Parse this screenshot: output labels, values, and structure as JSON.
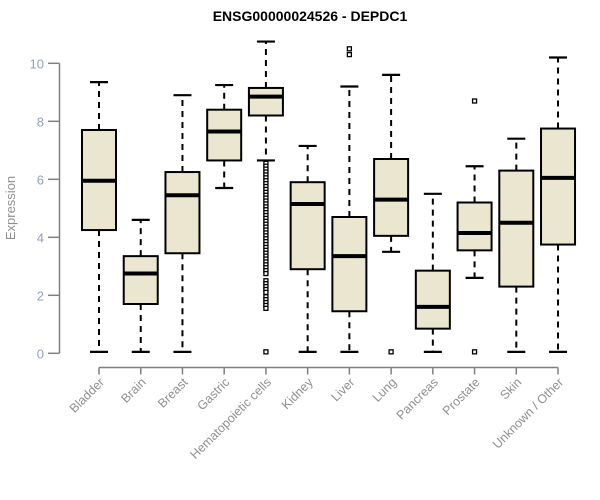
{
  "chart_data": {
    "type": "boxplot",
    "title": "ENSG00000024526 - DEPDC1",
    "xlabel": "",
    "ylabel": "Expression",
    "ylim": [
      0,
      10.8
    ],
    "yticks": [
      0,
      2,
      4,
      6,
      8,
      10
    ],
    "grid": false,
    "legend": "none",
    "colors": {
      "box_fill": "#EBE6CF",
      "box_border": "#000000",
      "median": "#000000",
      "whisker": "#000000",
      "axis": "#808080",
      "y_tick_label": "#93A1B8",
      "x_tick_label": "#8F8F8F",
      "ylabel_color": "#909090",
      "title_color": "#000000",
      "background": "#FFFFFF"
    },
    "categories": [
      "Bladder",
      "Brain",
      "Breast",
      "Gastric",
      "Hematopoietic cells",
      "Kidney",
      "Liver",
      "Lung",
      "Pancreas",
      "Prostate",
      "Skin",
      "Unknown / Other"
    ],
    "series": [
      {
        "category": "Bladder",
        "whisker_low": 0.05,
        "q1": 4.25,
        "median": 5.95,
        "q3": 7.7,
        "whisker_high": 9.35,
        "outliers": []
      },
      {
        "category": "Brain",
        "whisker_low": 0.05,
        "q1": 1.7,
        "median": 2.75,
        "q3": 3.35,
        "whisker_high": 4.6,
        "outliers": []
      },
      {
        "category": "Breast",
        "whisker_low": 0.05,
        "q1": 3.45,
        "median": 5.45,
        "q3": 6.25,
        "whisker_high": 8.9,
        "outliers": []
      },
      {
        "category": "Gastric",
        "whisker_low": 5.7,
        "q1": 6.65,
        "median": 7.65,
        "q3": 8.4,
        "whisker_high": 9.25,
        "outliers": []
      },
      {
        "category": "Hematopoietic cells",
        "whisker_low": 6.65,
        "q1": 8.2,
        "median": 8.85,
        "q3": 9.15,
        "whisker_high": 10.75,
        "outliers": [
          6.55,
          6.45,
          6.35,
          6.25,
          6.15,
          6.05,
          5.95,
          5.85,
          5.75,
          5.65,
          5.55,
          5.45,
          5.35,
          5.25,
          5.15,
          5.05,
          4.95,
          4.85,
          4.75,
          4.65,
          4.55,
          4.45,
          4.35,
          4.25,
          4.15,
          4.05,
          3.95,
          3.85,
          3.75,
          3.65,
          3.55,
          3.45,
          3.35,
          3.25,
          3.15,
          3.05,
          2.95,
          2.85,
          2.75,
          2.5,
          2.4,
          2.3,
          2.2,
          2.1,
          1.95,
          1.85,
          1.75,
          1.65,
          1.55,
          0.05
        ]
      },
      {
        "category": "Kidney",
        "whisker_low": 0.05,
        "q1": 2.9,
        "median": 5.15,
        "q3": 5.9,
        "whisker_high": 7.15,
        "outliers": []
      },
      {
        "category": "Liver",
        "whisker_low": 0.05,
        "q1": 1.45,
        "median": 3.35,
        "q3": 4.7,
        "whisker_high": 9.2,
        "outliers": [
          10.3,
          10.5
        ]
      },
      {
        "category": "Lung",
        "whisker_low": 3.5,
        "q1": 4.05,
        "median": 5.3,
        "q3": 6.7,
        "whisker_high": 9.6,
        "outliers": [
          0.05
        ]
      },
      {
        "category": "Pancreas",
        "whisker_low": 0.05,
        "q1": 0.85,
        "median": 1.6,
        "q3": 2.85,
        "whisker_high": 5.5,
        "outliers": []
      },
      {
        "category": "Prostate",
        "whisker_low": 2.6,
        "q1": 3.55,
        "median": 4.15,
        "q3": 5.2,
        "whisker_high": 6.45,
        "outliers": [
          8.7,
          0.05
        ]
      },
      {
        "category": "Skin",
        "whisker_low": 0.05,
        "q1": 2.3,
        "median": 4.5,
        "q3": 6.3,
        "whisker_high": 7.4,
        "outliers": []
      },
      {
        "category": "Unknown / Other",
        "whisker_low": 0.05,
        "q1": 3.75,
        "median": 6.05,
        "q3": 7.75,
        "whisker_high": 10.2,
        "outliers": []
      }
    ]
  }
}
